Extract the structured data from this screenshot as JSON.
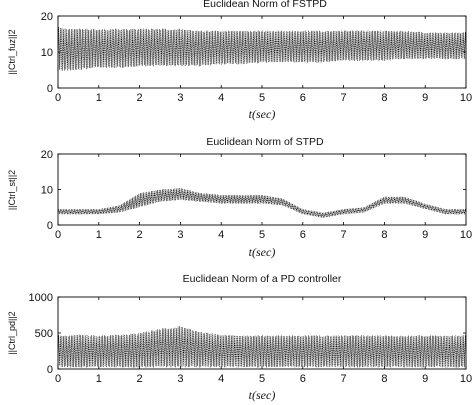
{
  "chart_data": [
    {
      "type": "line",
      "title": "Euclidean Norm of FSTPD",
      "xlabel": "t(sec)",
      "ylabel": "||Ctrl_fuz||2",
      "xlim": [
        0,
        10
      ],
      "ylim": [
        0,
        20
      ],
      "xticks": [
        "0",
        "1",
        "2",
        "3",
        "4",
        "5",
        "6",
        "7",
        "8",
        "9",
        "10"
      ],
      "yticks": [
        "0",
        "10",
        "20"
      ],
      "style": "dense oscillation",
      "x": [
        0,
        0.5,
        1,
        1.5,
        2,
        2.5,
        3,
        3.5,
        4,
        4.5,
        5,
        5.5,
        6,
        6.5,
        7,
        7.5,
        8,
        8.5,
        9,
        9.5,
        10
      ],
      "upper": [
        17,
        16.5,
        16.5,
        16.5,
        16.5,
        16.5,
        16.5,
        16,
        16,
        16,
        16,
        16,
        16,
        16,
        16,
        16,
        16,
        16,
        15.5,
        15.5,
        15.5
      ],
      "lower": [
        4.5,
        5,
        5.5,
        5.5,
        6,
        6,
        6,
        6,
        6.5,
        6.5,
        7,
        7,
        7,
        7,
        7.5,
        7.5,
        7.5,
        8,
        8,
        8,
        8
      ]
    },
    {
      "type": "line",
      "title": "Euclidean Norm of STPD",
      "xlabel": "t(sec)",
      "ylabel": "||Ctrl_st||2",
      "xlim": [
        0,
        10
      ],
      "ylim": [
        0,
        20
      ],
      "xticks": [
        "0",
        "1",
        "2",
        "3",
        "4",
        "5",
        "6",
        "7",
        "8",
        "9",
        "10"
      ],
      "yticks": [
        "0",
        "10",
        "20"
      ],
      "style": "dense oscillation",
      "x": [
        0,
        0.5,
        1,
        1.5,
        2,
        2.5,
        3,
        3.5,
        4,
        4.5,
        5,
        5.5,
        6,
        6.5,
        7,
        7.5,
        8,
        8.5,
        9,
        9.5,
        10
      ],
      "upper": [
        4.5,
        4.5,
        4.5,
        5.5,
        9,
        10,
        10.5,
        9,
        8.5,
        8.5,
        8.5,
        7.5,
        4.5,
        3.5,
        4.5,
        5,
        8,
        8,
        6,
        4.5,
        4.5
      ],
      "lower": [
        3,
        3,
        3,
        3.5,
        5,
        6.5,
        7,
        6.5,
        6,
        6,
        6,
        5.5,
        3,
        2,
        3,
        3.5,
        6,
        6,
        4.5,
        3,
        3
      ]
    },
    {
      "type": "line",
      "title": "Euclidean Norm of a PD controller",
      "xlabel": "t(sec)",
      "ylabel": "||Ctrl_pd||2",
      "xlim": [
        0,
        10
      ],
      "ylim": [
        0,
        1000
      ],
      "xticks": [
        "0",
        "1",
        "2",
        "3",
        "4",
        "5",
        "6",
        "7",
        "8",
        "9",
        "10"
      ],
      "yticks": [
        "0",
        "500",
        "1000"
      ],
      "style": "dense oscillation",
      "x": [
        0,
        0.5,
        1,
        1.5,
        2,
        2.5,
        3,
        3.5,
        4,
        4.5,
        5,
        5.5,
        6,
        6.5,
        7,
        7.5,
        8,
        8.5,
        9,
        9.5,
        10
      ],
      "upper": [
        470,
        480,
        470,
        480,
        500,
        560,
        600,
        520,
        480,
        470,
        470,
        470,
        470,
        470,
        470,
        470,
        470,
        470,
        470,
        470,
        470
      ],
      "lower": [
        20,
        20,
        20,
        20,
        20,
        20,
        20,
        20,
        20,
        20,
        20,
        20,
        20,
        20,
        20,
        20,
        20,
        20,
        20,
        20,
        20
      ]
    }
  ]
}
